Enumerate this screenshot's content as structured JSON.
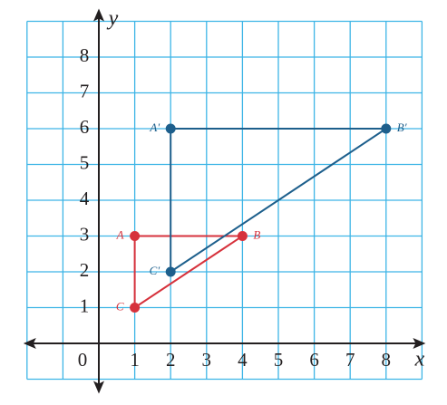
{
  "chart_data": {
    "type": "scatter",
    "x_label": "x",
    "y_label": "y",
    "xlim": [
      -2,
      9
    ],
    "ylim": [
      -1,
      9
    ],
    "xticks": [
      0,
      1,
      2,
      3,
      4,
      5,
      6,
      7,
      8
    ],
    "yticks": [
      1,
      2,
      3,
      4,
      5,
      6,
      7,
      8
    ],
    "grid": true,
    "series": [
      {
        "name": "ABC",
        "color": "#d6323c",
        "labels": [
          "A",
          "B",
          "C"
        ],
        "x": [
          1,
          4,
          1
        ],
        "y": [
          3,
          3,
          1
        ]
      },
      {
        "name": "A′B′C′",
        "color": "#1d5f8c",
        "labels": [
          "A′",
          "B′",
          "C′"
        ],
        "x": [
          2,
          8,
          2
        ],
        "y": [
          6,
          6,
          2
        ]
      }
    ]
  }
}
